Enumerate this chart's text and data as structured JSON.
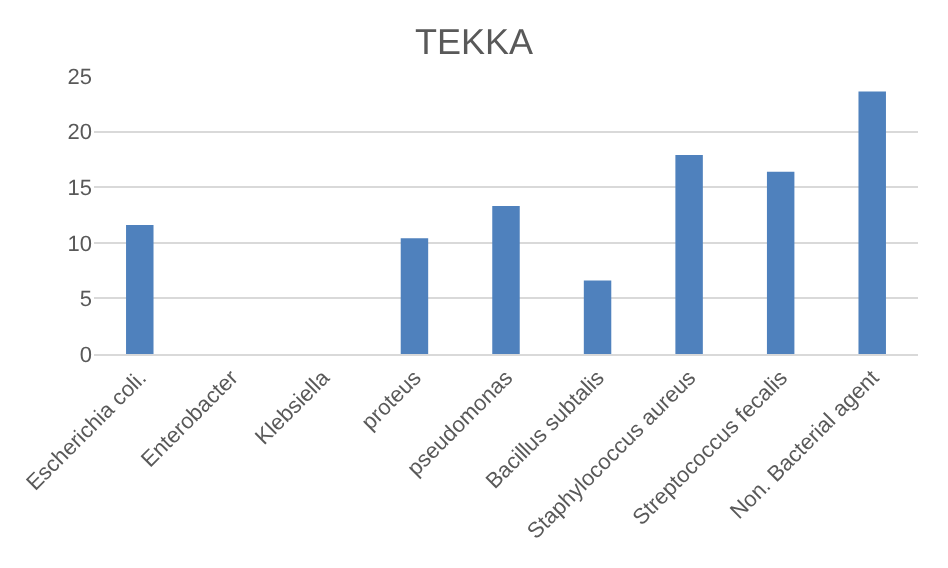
{
  "chart_data": {
    "type": "bar",
    "title": "TEKKA",
    "categories": [
      "Escherichia coli.",
      "Enterobacter",
      "Klebsiella",
      "proteus",
      "pseudomonas",
      "Bacillus subtalis",
      "Staphylococcus aureus",
      "Streptococcus fecalis",
      "Non. Bacterial agent"
    ],
    "values": [
      11.6,
      0,
      0,
      10.4,
      13.3,
      6.6,
      17.9,
      16.4,
      23.6
    ],
    "color": "#4f81bd",
    "ylim": [
      0,
      25
    ],
    "yticks": [
      0,
      5,
      10,
      15,
      20,
      25
    ],
    "grid": "y"
  }
}
